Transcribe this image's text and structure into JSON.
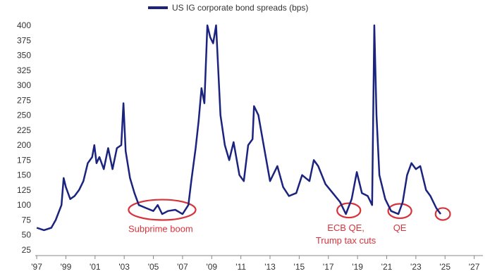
{
  "chart_data": {
    "type": "line",
    "legend_position": "top",
    "grid": false,
    "series": [
      {
        "name": "US IG corporate bond spreads (bps)",
        "color": "#1a237e",
        "points": [
          [
            1997.0,
            62
          ],
          [
            1997.5,
            58
          ],
          [
            1998.0,
            62
          ],
          [
            1998.3,
            75
          ],
          [
            1998.7,
            100
          ],
          [
            1998.85,
            145
          ],
          [
            1999.0,
            130
          ],
          [
            1999.3,
            110
          ],
          [
            1999.6,
            115
          ],
          [
            1999.9,
            125
          ],
          [
            2000.2,
            140
          ],
          [
            2000.5,
            170
          ],
          [
            2000.8,
            180
          ],
          [
            2000.95,
            200
          ],
          [
            2001.1,
            170
          ],
          [
            2001.3,
            180
          ],
          [
            2001.6,
            160
          ],
          [
            2001.9,
            195
          ],
          [
            2002.2,
            160
          ],
          [
            2002.5,
            195
          ],
          [
            2002.8,
            200
          ],
          [
            2002.95,
            270
          ],
          [
            2003.1,
            190
          ],
          [
            2003.4,
            145
          ],
          [
            2003.7,
            120
          ],
          [
            2004.0,
            100
          ],
          [
            2004.5,
            95
          ],
          [
            2005.0,
            90
          ],
          [
            2005.3,
            100
          ],
          [
            2005.6,
            85
          ],
          [
            2006.0,
            90
          ],
          [
            2006.5,
            92
          ],
          [
            2007.0,
            85
          ],
          [
            2007.4,
            100
          ],
          [
            2007.6,
            140
          ],
          [
            2007.9,
            195
          ],
          [
            2008.1,
            240
          ],
          [
            2008.3,
            295
          ],
          [
            2008.5,
            270
          ],
          [
            2008.7,
            400
          ],
          [
            2008.9,
            380
          ],
          [
            2009.1,
            370
          ],
          [
            2009.3,
            400
          ],
          [
            2009.6,
            250
          ],
          [
            2009.9,
            200
          ],
          [
            2010.2,
            175
          ],
          [
            2010.5,
            205
          ],
          [
            2010.9,
            150
          ],
          [
            2011.2,
            140
          ],
          [
            2011.5,
            200
          ],
          [
            2011.8,
            210
          ],
          [
            2011.9,
            265
          ],
          [
            2012.2,
            250
          ],
          [
            2012.6,
            195
          ],
          [
            2013.0,
            140
          ],
          [
            2013.5,
            165
          ],
          [
            2013.9,
            130
          ],
          [
            2014.3,
            115
          ],
          [
            2014.8,
            120
          ],
          [
            2015.2,
            150
          ],
          [
            2015.7,
            140
          ],
          [
            2016.0,
            175
          ],
          [
            2016.3,
            165
          ],
          [
            2016.8,
            135
          ],
          [
            2017.3,
            120
          ],
          [
            2017.8,
            105
          ],
          [
            2018.2,
            85
          ],
          [
            2018.6,
            110
          ],
          [
            2018.95,
            155
          ],
          [
            2019.3,
            120
          ],
          [
            2019.7,
            115
          ],
          [
            2020.0,
            100
          ],
          [
            2020.15,
            400
          ],
          [
            2020.3,
            250
          ],
          [
            2020.5,
            150
          ],
          [
            2020.9,
            110
          ],
          [
            2021.3,
            90
          ],
          [
            2021.8,
            85
          ],
          [
            2022.1,
            105
          ],
          [
            2022.4,
            150
          ],
          [
            2022.7,
            170
          ],
          [
            2023.0,
            160
          ],
          [
            2023.3,
            165
          ],
          [
            2023.7,
            125
          ],
          [
            2024.0,
            115
          ],
          [
            2024.4,
            95
          ],
          [
            2024.7,
            85
          ]
        ]
      }
    ],
    "xlim": [
      1996.9,
      2027.6
    ],
    "ylim": [
      25,
      400
    ],
    "y_ticks": [
      25,
      50,
      75,
      100,
      125,
      150,
      175,
      200,
      225,
      250,
      275,
      300,
      325,
      350,
      375,
      400
    ],
    "x_ticks": [
      {
        "value": 1997,
        "label": "'97"
      },
      {
        "value": 1999,
        "label": "'99"
      },
      {
        "value": 2001,
        "label": "'01"
      },
      {
        "value": 2003,
        "label": "'03"
      },
      {
        "value": 2005,
        "label": "'05"
      },
      {
        "value": 2007,
        "label": "'07"
      },
      {
        "value": 2009,
        "label": "'09"
      },
      {
        "value": 2011,
        "label": "'11"
      },
      {
        "value": 2013,
        "label": "'13"
      },
      {
        "value": 2015,
        "label": "'15"
      },
      {
        "value": 2017,
        "label": "'17"
      },
      {
        "value": 2019,
        "label": "'19"
      },
      {
        "value": 2021,
        "label": "'21"
      },
      {
        "value": 2023,
        "label": "'23"
      },
      {
        "value": 2025,
        "label": "'25"
      },
      {
        "value": 2027,
        "label": "'27"
      }
    ],
    "annotations": [
      {
        "id": "subprime",
        "circle": {
          "x": 2005.6,
          "y": 92,
          "rx_years": 2.3,
          "ry_bps": 17
        },
        "labels": [
          "Subprime boom"
        ],
        "label_x": 2005.5,
        "label_y": 55
      },
      {
        "id": "ecb",
        "circle": {
          "x": 2018.4,
          "y": 91,
          "rx_years": 0.8,
          "ry_bps": 12
        },
        "labels": [
          "ECB QE,",
          "Trump tax cuts"
        ],
        "label_x": 2018.2,
        "label_y": 57
      },
      {
        "id": "qe",
        "circle": {
          "x": 2021.9,
          "y": 90,
          "rx_years": 0.8,
          "ry_bps": 12
        },
        "labels": [
          "QE"
        ],
        "label_x": 2021.9,
        "label_y": 57
      },
      {
        "id": "now",
        "circle": {
          "x": 2024.85,
          "y": 85,
          "rx_years": 0.5,
          "ry_bps": 10
        },
        "labels": [],
        "label_x": 0,
        "label_y": 0
      }
    ],
    "annotation_color": "#d6333b"
  }
}
